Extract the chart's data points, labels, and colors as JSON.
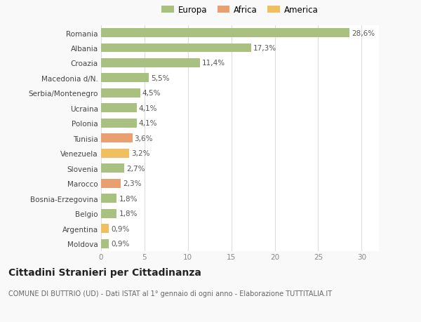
{
  "categories": [
    "Romania",
    "Albania",
    "Croazia",
    "Macedonia d/N.",
    "Serbia/Montenegro",
    "Ucraina",
    "Polonia",
    "Tunisia",
    "Venezuela",
    "Slovenia",
    "Marocco",
    "Bosnia-Erzegovina",
    "Belgio",
    "Argentina",
    "Moldova"
  ],
  "values": [
    28.6,
    17.3,
    11.4,
    5.5,
    4.5,
    4.1,
    4.1,
    3.6,
    3.2,
    2.7,
    2.3,
    1.8,
    1.8,
    0.9,
    0.9
  ],
  "labels": [
    "28,6%",
    "17,3%",
    "11,4%",
    "5,5%",
    "4,5%",
    "4,1%",
    "4,1%",
    "3,6%",
    "3,2%",
    "2,7%",
    "2,3%",
    "1,8%",
    "1,8%",
    "0,9%",
    "0,9%"
  ],
  "colors": [
    "#a8c080",
    "#a8c080",
    "#a8c080",
    "#a8c080",
    "#a8c080",
    "#a8c080",
    "#a8c080",
    "#e8a070",
    "#f0c060",
    "#a8c080",
    "#e8a070",
    "#a8c080",
    "#a8c080",
    "#f0c060",
    "#a8c080"
  ],
  "legend": [
    {
      "label": "Europa",
      "color": "#a8c080"
    },
    {
      "label": "Africa",
      "color": "#e8a070"
    },
    {
      "label": "America",
      "color": "#f0c060"
    }
  ],
  "xlim": [
    0,
    32
  ],
  "xticks": [
    0,
    5,
    10,
    15,
    20,
    25,
    30
  ],
  "title": "Cittadini Stranieri per Cittadinanza",
  "subtitle": "COMUNE DI BUTTRIO (UD) - Dati ISTAT al 1° gennaio di ogni anno - Elaborazione TUTTITALIA.IT",
  "bg_color": "#f9f9f9",
  "bar_bg_color": "#ffffff",
  "grid_color": "#dddddd",
  "label_fontsize": 7.5,
  "tick_fontsize": 7.5,
  "title_fontsize": 10,
  "subtitle_fontsize": 7,
  "bar_height": 0.6
}
